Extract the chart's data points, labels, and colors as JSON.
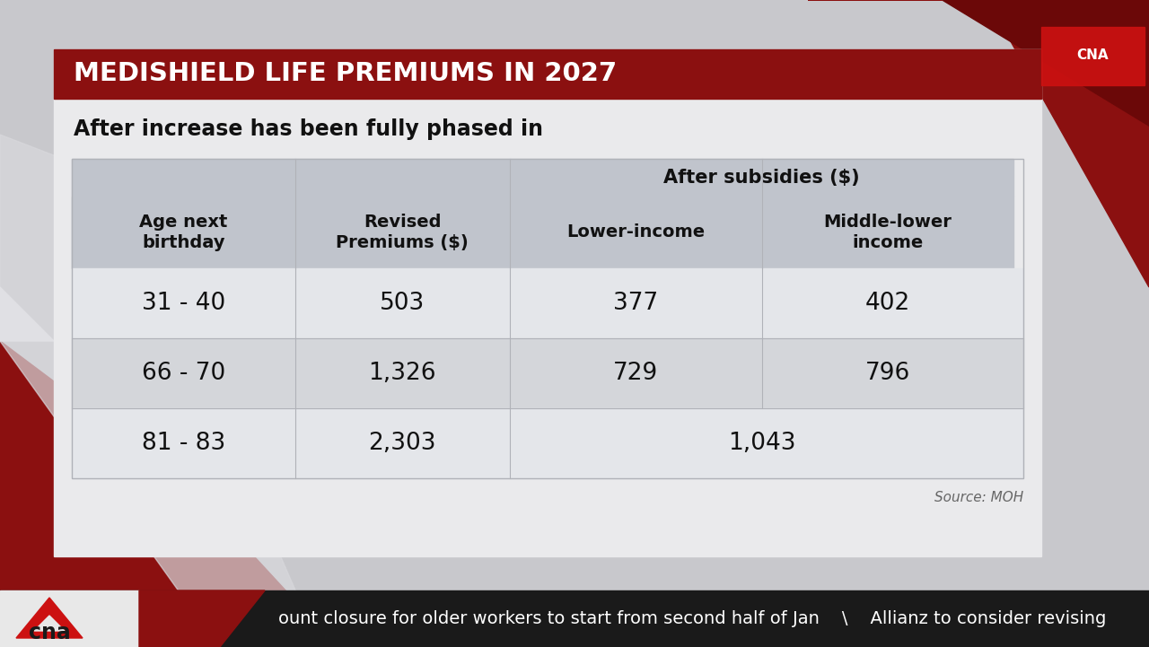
{
  "title": "MEDISHIELD LIFE PREMIUMS IN 2027",
  "subtitle": "After increase has been fully phased in",
  "source": "Source: MOH",
  "col_headers": [
    "Age next\nbirthday",
    "Revised\nPremiums ($)",
    "Lower-income",
    "Middle-lower\nincome"
  ],
  "subheader_span": "After subsidies ($)",
  "rows": [
    [
      "31 - 40",
      "503",
      "377",
      "402"
    ],
    [
      "66 - 70",
      "1,326",
      "729",
      "796"
    ],
    [
      "81 - 83",
      "2,303",
      "1,043",
      ""
    ]
  ],
  "bg_color": "#c8c8cc",
  "table_panel_color": "#eaeaec",
  "header_bg": "#c0c4cc",
  "title_bar_color": "#8b1010",
  "title_text_color": "#ffffff",
  "row_colors": [
    "#e4e6ea",
    "#d4d6da",
    "#e4e6ea"
  ],
  "cell_divider": "#b0b2b8",
  "red_shape": "#8b1010",
  "red_dark": "#6b0808",
  "ticker_bg": "#1a1a1a",
  "cna_logo_bg": "#e8e8e8",
  "ticker_text": "ount closure for older workers to start from second half of Jan    \\    Allianz to consider revising",
  "source_color": "#666666"
}
